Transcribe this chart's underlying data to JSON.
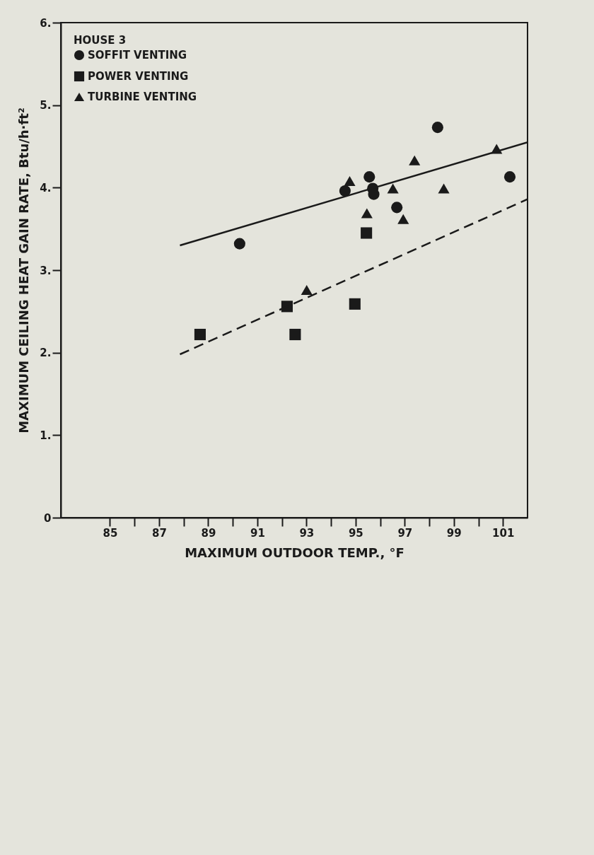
{
  "chart_data": {
    "type": "scatter",
    "xlabel": "MAXIMUM OUTDOOR TEMP., °F",
    "ylabel": "MAXIMUM CEILING HEAT GAIN RATE, Btu/h·ft²",
    "legend_title": "HOUSE 3",
    "xlim": [
      83,
      102
    ],
    "ylim": [
      0,
      6
    ],
    "xticks": [
      85,
      {
        "value": 86,
        "label": null
      },
      87,
      {
        "value": 88,
        "label": null
      },
      89,
      {
        "value": 90,
        "label": null
      },
      91,
      {
        "value": 92,
        "label": null
      },
      93,
      {
        "value": 94,
        "label": null
      },
      95,
      {
        "value": 96,
        "label": null
      },
      97,
      {
        "value": 98,
        "label": null
      },
      99,
      {
        "value": 100,
        "label": null
      },
      101
    ],
    "yticks": [
      0,
      {
        "value": 1,
        "label": "1."
      },
      {
        "value": 2,
        "label": "2."
      },
      {
        "value": 3,
        "label": "3."
      },
      {
        "value": 4,
        "label": "4."
      },
      {
        "value": 5,
        "label": "5."
      },
      {
        "value": 6,
        "label": "6."
      }
    ],
    "grid": false,
    "legend": "top left",
    "series": [
      {
        "name": "SOFFIT VENTING",
        "marker": "circle",
        "color": "#1a1a1a",
        "x": [
          101.28,
          98.34,
          96.68,
          95.56,
          95.7,
          95.74,
          94.57,
          90.28
        ],
        "values": [
          4.13,
          4.73,
          3.76,
          4.13,
          3.99,
          3.92,
          3.96,
          3.32
        ]
      },
      {
        "name": "POWER VENTING",
        "marker": "square",
        "color": "#1a1a1a",
        "x": [
          95.44,
          94.97,
          92.21,
          92.54,
          88.67
        ],
        "values": [
          3.45,
          2.59,
          2.56,
          2.22,
          2.22
        ]
      },
      {
        "name": "TURBINE VENTING",
        "marker": "triangle",
        "color": "#1a1a1a",
        "x": [
          100.74,
          98.59,
          97.4,
          96.94,
          96.52,
          95.46,
          94.76,
          93.01
        ],
        "values": [
          4.47,
          3.99,
          4.33,
          3.62,
          3.99,
          3.69,
          4.08,
          2.76
        ]
      },
      {
        "type": "line",
        "line_style": "solid",
        "color": "#1a1a1a",
        "x": [
          87.85,
          102
        ],
        "values": [
          3.3,
          4.55
        ]
      },
      {
        "type": "line",
        "line_style": "dashed",
        "color": "#1a1a1a",
        "x": [
          87.85,
          102
        ],
        "values": [
          1.98,
          3.86
        ]
      }
    ]
  }
}
